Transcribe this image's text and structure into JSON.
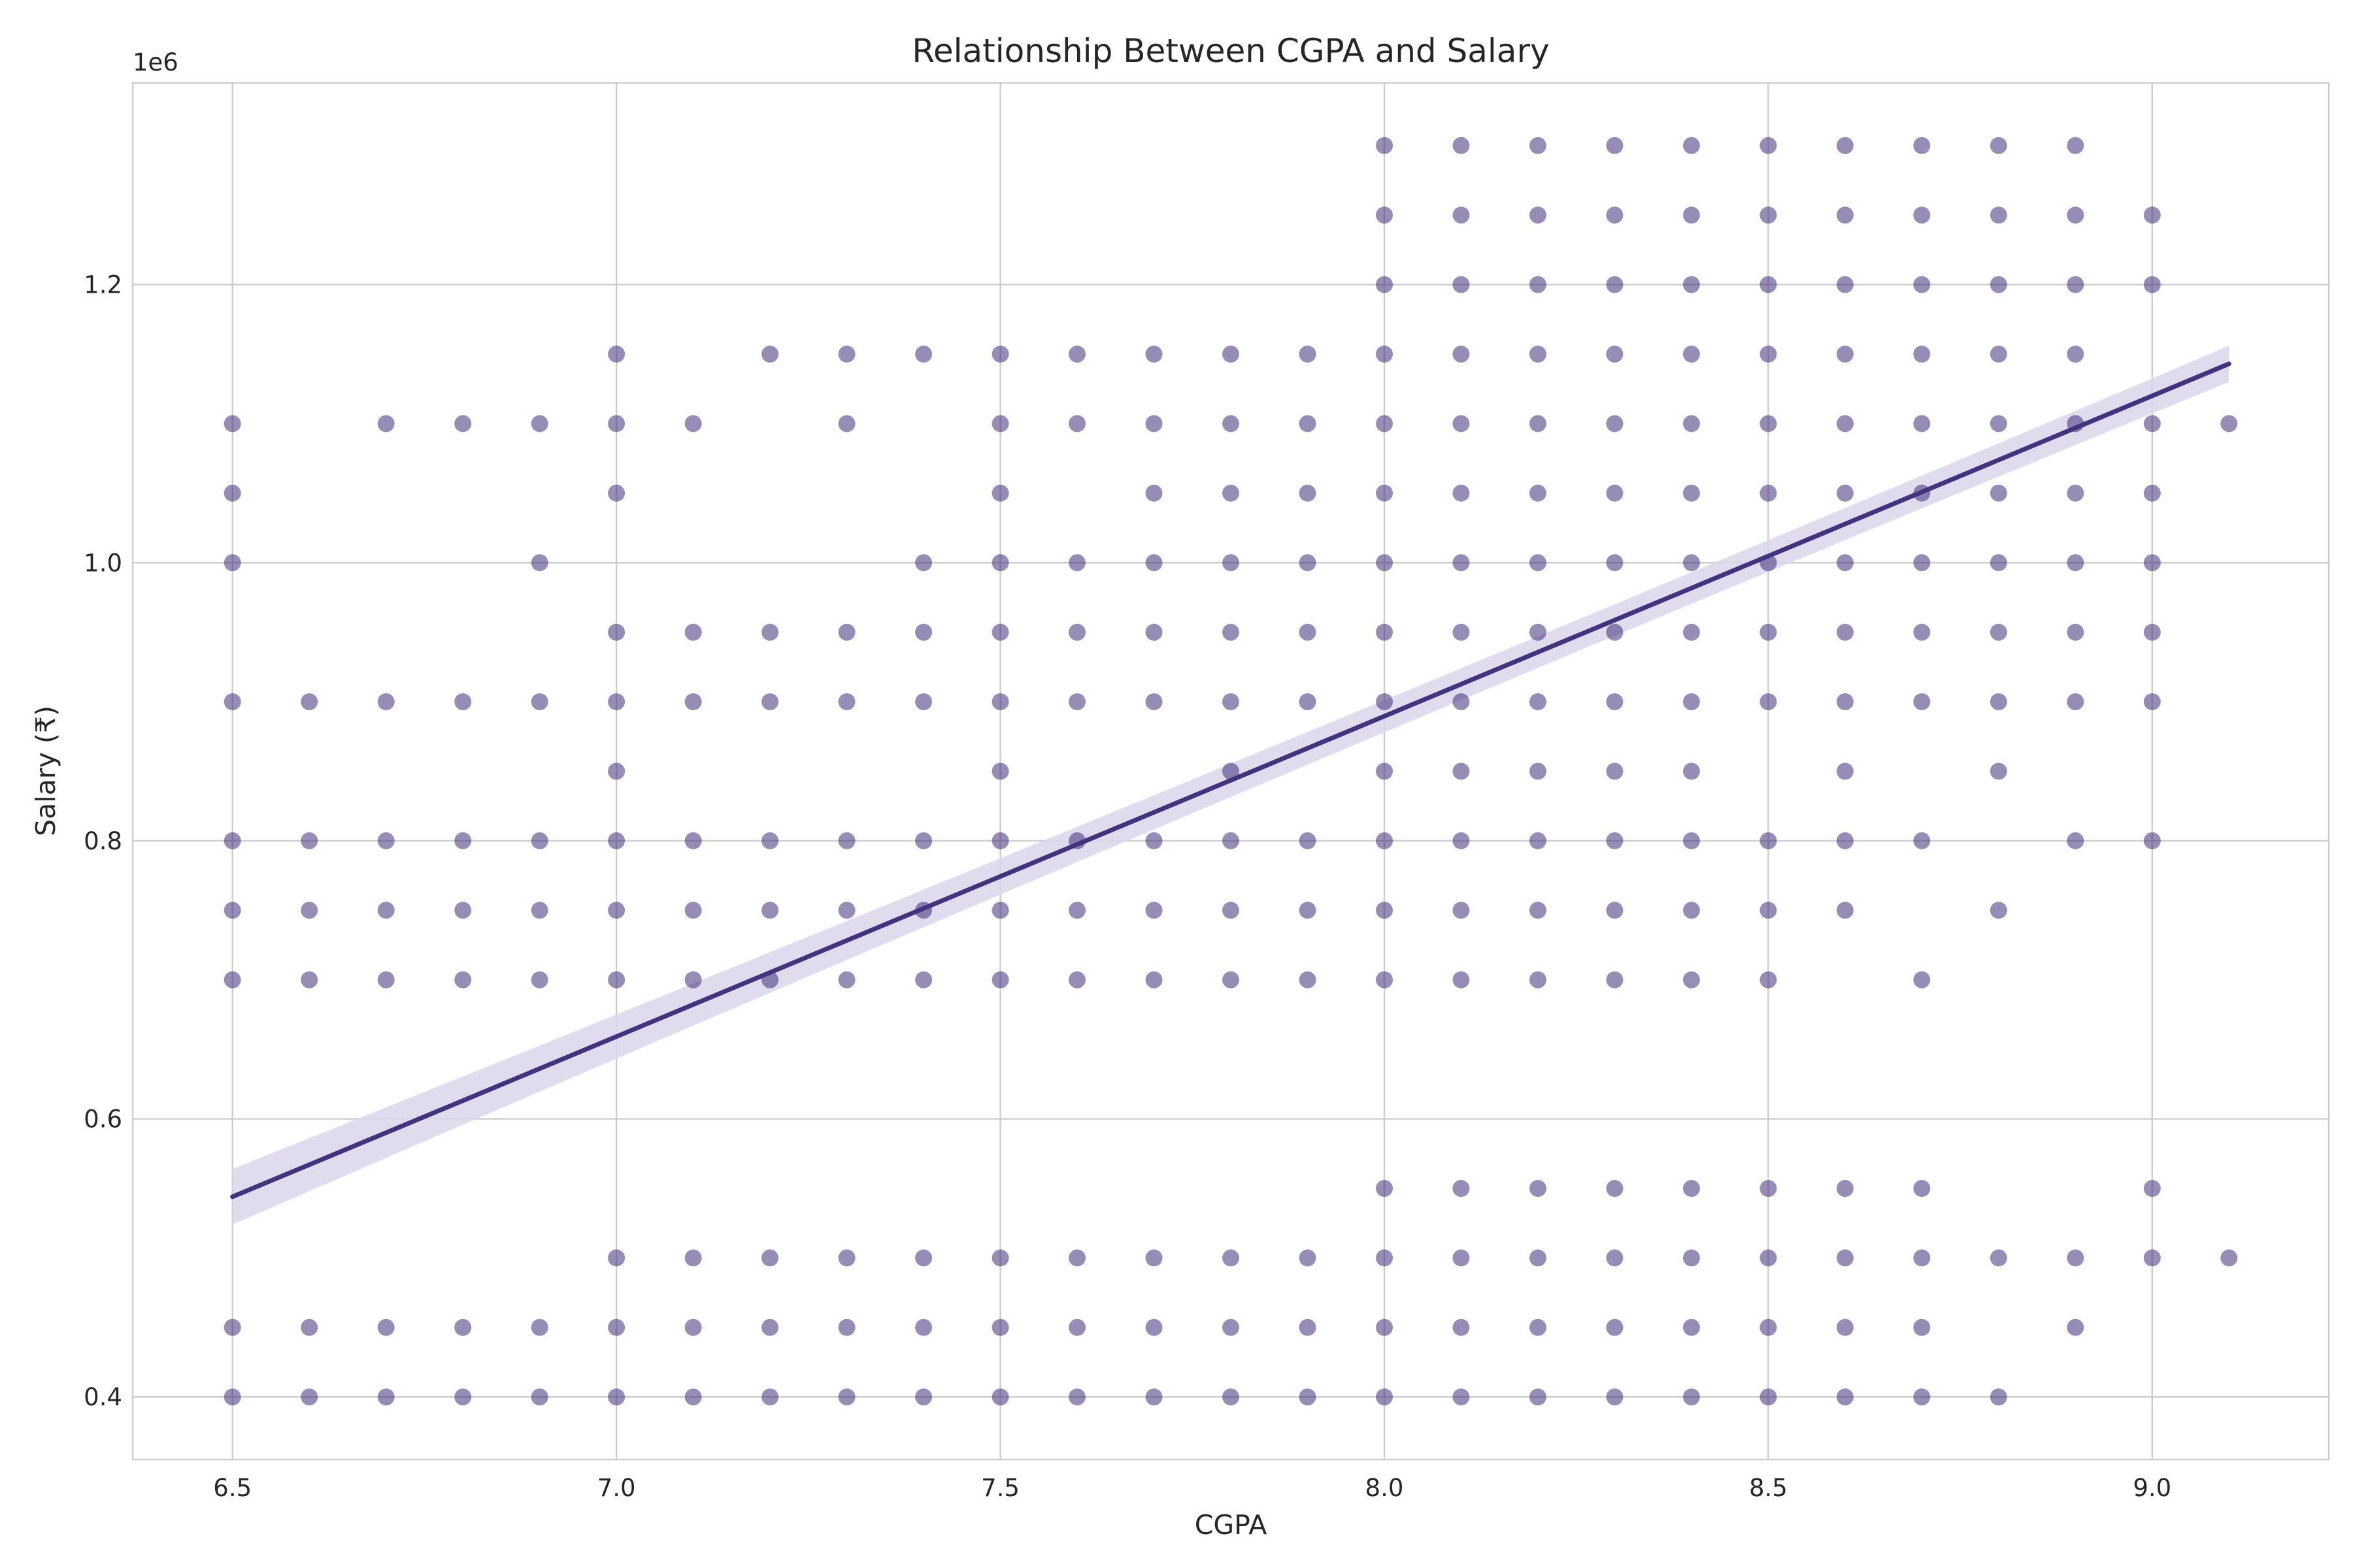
{
  "chart_data": {
    "type": "scatter",
    "title": "Relationship Between CGPA and Salary",
    "xlabel": "CGPA",
    "ylabel": "Salary (₹)",
    "y_offset_label": "1e6",
    "xlim": [
      6.37,
      9.23
    ],
    "ylim": [
      355000,
      1345000
    ],
    "x_ticks": [
      6.5,
      7.0,
      7.5,
      8.0,
      8.5,
      9.0
    ],
    "x_tick_labels": [
      "6.5",
      "7.0",
      "7.5",
      "8.0",
      "8.5",
      "9.0"
    ],
    "y_ticks": [
      400000,
      600000,
      800000,
      1000000,
      1200000
    ],
    "y_tick_labels": [
      "0.4",
      "0.6",
      "0.8",
      "1.0",
      "1.2"
    ],
    "grid": true,
    "colors": {
      "points": "#3f2d7a",
      "line": "#43327e",
      "band": "#dcd6ea"
    },
    "regression": {
      "x": [
        6.5,
        9.1
      ],
      "y": [
        544000,
        1143000
      ],
      "ci_half_width": [
        20000,
        12000,
        13000
      ]
    },
    "points": [
      {
        "x": 6.5,
        "salaries": [
          1100000,
          1050000,
          1000000,
          900000,
          800000,
          750000,
          700000,
          450000,
          400000
        ]
      },
      {
        "x": 6.6,
        "salaries": [
          900000,
          800000,
          750000,
          700000,
          450000,
          400000
        ]
      },
      {
        "x": 6.7,
        "salaries": [
          1100000,
          900000,
          800000,
          750000,
          700000,
          450000,
          400000
        ]
      },
      {
        "x": 6.8,
        "salaries": [
          1100000,
          900000,
          800000,
          750000,
          700000,
          450000,
          400000
        ]
      },
      {
        "x": 6.9,
        "salaries": [
          1100000,
          1000000,
          900000,
          800000,
          750000,
          700000,
          450000,
          400000
        ]
      },
      {
        "x": 7.0,
        "salaries": [
          1150000,
          1100000,
          1050000,
          950000,
          900000,
          850000,
          800000,
          750000,
          700000,
          500000,
          450000,
          400000
        ]
      },
      {
        "x": 7.1,
        "salaries": [
          1100000,
          950000,
          900000,
          800000,
          750000,
          700000,
          500000,
          450000,
          400000
        ]
      },
      {
        "x": 7.2,
        "salaries": [
          1150000,
          950000,
          900000,
          800000,
          750000,
          700000,
          500000,
          450000,
          400000
        ]
      },
      {
        "x": 7.3,
        "salaries": [
          1150000,
          1100000,
          950000,
          900000,
          800000,
          750000,
          700000,
          500000,
          450000,
          400000
        ]
      },
      {
        "x": 7.4,
        "salaries": [
          1150000,
          1000000,
          950000,
          900000,
          800000,
          750000,
          700000,
          500000,
          450000,
          400000
        ]
      },
      {
        "x": 7.5,
        "salaries": [
          1150000,
          1100000,
          1050000,
          1000000,
          950000,
          900000,
          850000,
          800000,
          750000,
          700000,
          500000,
          450000,
          400000
        ]
      },
      {
        "x": 7.6,
        "salaries": [
          1150000,
          1100000,
          1000000,
          950000,
          900000,
          800000,
          750000,
          700000,
          500000,
          450000,
          400000
        ]
      },
      {
        "x": 7.7,
        "salaries": [
          1150000,
          1100000,
          1050000,
          1000000,
          950000,
          900000,
          800000,
          750000,
          700000,
          500000,
          450000,
          400000
        ]
      },
      {
        "x": 7.8,
        "salaries": [
          1150000,
          1100000,
          1050000,
          1000000,
          950000,
          900000,
          850000,
          800000,
          750000,
          700000,
          500000,
          450000,
          400000
        ]
      },
      {
        "x": 7.9,
        "salaries": [
          1150000,
          1100000,
          1050000,
          1000000,
          950000,
          900000,
          800000,
          750000,
          700000,
          500000,
          450000,
          400000
        ]
      },
      {
        "x": 8.0,
        "salaries": [
          1300000,
          1250000,
          1200000,
          1150000,
          1100000,
          1050000,
          1000000,
          950000,
          900000,
          850000,
          800000,
          750000,
          700000,
          550000,
          500000,
          450000,
          400000
        ]
      },
      {
        "x": 8.1,
        "salaries": [
          1300000,
          1250000,
          1200000,
          1150000,
          1100000,
          1050000,
          1000000,
          950000,
          900000,
          850000,
          800000,
          750000,
          700000,
          550000,
          500000,
          450000,
          400000
        ]
      },
      {
        "x": 8.2,
        "salaries": [
          1300000,
          1250000,
          1200000,
          1150000,
          1100000,
          1050000,
          1000000,
          950000,
          900000,
          850000,
          800000,
          750000,
          700000,
          550000,
          500000,
          450000,
          400000
        ]
      },
      {
        "x": 8.3,
        "salaries": [
          1300000,
          1250000,
          1200000,
          1150000,
          1100000,
          1050000,
          1000000,
          950000,
          900000,
          850000,
          800000,
          750000,
          700000,
          550000,
          500000,
          450000,
          400000
        ]
      },
      {
        "x": 8.4,
        "salaries": [
          1300000,
          1250000,
          1200000,
          1150000,
          1100000,
          1050000,
          1000000,
          950000,
          900000,
          850000,
          800000,
          750000,
          700000,
          550000,
          500000,
          450000,
          400000
        ]
      },
      {
        "x": 8.5,
        "salaries": [
          1300000,
          1250000,
          1200000,
          1150000,
          1100000,
          1050000,
          1000000,
          950000,
          900000,
          800000,
          750000,
          700000,
          550000,
          500000,
          450000,
          400000
        ]
      },
      {
        "x": 8.6,
        "salaries": [
          1300000,
          1250000,
          1200000,
          1150000,
          1100000,
          1050000,
          1000000,
          950000,
          900000,
          850000,
          800000,
          750000,
          550000,
          500000,
          450000,
          400000
        ]
      },
      {
        "x": 8.7,
        "salaries": [
          1300000,
          1250000,
          1200000,
          1150000,
          1100000,
          1050000,
          1000000,
          950000,
          900000,
          800000,
          700000,
          550000,
          500000,
          450000,
          400000
        ]
      },
      {
        "x": 8.8,
        "salaries": [
          1300000,
          1250000,
          1200000,
          1150000,
          1100000,
          1050000,
          1000000,
          950000,
          900000,
          850000,
          750000,
          500000,
          400000
        ]
      },
      {
        "x": 8.9,
        "salaries": [
          1300000,
          1250000,
          1200000,
          1150000,
          1100000,
          1050000,
          1000000,
          950000,
          900000,
          800000,
          500000,
          450000
        ]
      },
      {
        "x": 9.0,
        "salaries": [
          1250000,
          1200000,
          1100000,
          1050000,
          1000000,
          950000,
          900000,
          800000,
          550000,
          500000
        ]
      },
      {
        "x": 9.1,
        "salaries": [
          1100000,
          500000
        ]
      }
    ]
  }
}
